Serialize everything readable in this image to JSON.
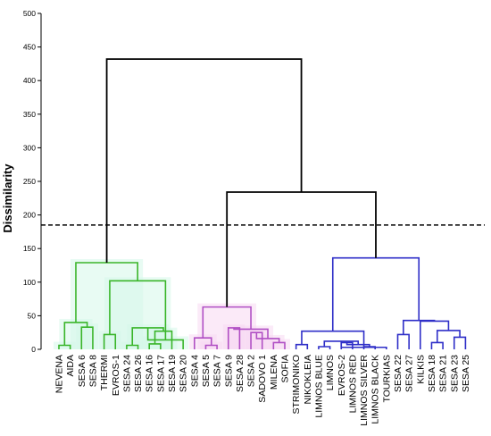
{
  "chart_data": {
    "type": "dendrogram",
    "ylabel": "Dissimilarity",
    "ylim": [
      0,
      500
    ],
    "yticks": [
      0,
      50,
      100,
      150,
      200,
      250,
      300,
      350,
      400,
      450,
      500
    ],
    "cut_line": 185,
    "leaves": [
      "NEVENA",
      "AIDA",
      "SESA 6",
      "SESA 8",
      "THERMI",
      "EVROS-1",
      "SESA 24",
      "SESA 26",
      "SESA 16",
      "SESA 17",
      "SESA 19",
      "SESA 20",
      "SESA 4",
      "SESA 5",
      "SESA 7",
      "SESA 9",
      "SESA 28",
      "SESA 2",
      "SADOVO 1",
      "MILENA",
      "SOFIA",
      "STRIMONIKO",
      "NIKOKLEIA",
      "LIMNOS BLUE",
      "LIMNOS",
      "EVROS-2",
      "LIMNOS RED",
      "LIMNOS SILVER",
      "LIMNOS BLACK",
      "TOURKIAS",
      "SESA 22",
      "SESA 27",
      "KILKIS",
      "SESA 18",
      "SESA 21",
      "SESA 23",
      "SESA 25"
    ],
    "clusters": [
      {
        "color": "#3ab52a",
        "shade": "#d6f7ea",
        "leaves": [
          0,
          11
        ]
      },
      {
        "color": "#b04fc4",
        "shade": "#f7d9f3",
        "leaves": [
          12,
          20
        ]
      },
      {
        "color": "#2f2fc8",
        "shade": "",
        "leaves": [
          21,
          36
        ]
      }
    ],
    "merges": [
      {
        "a": 0,
        "b": 1,
        "h": 6,
        "c": 0
      },
      {
        "a": 2,
        "b": 3,
        "h": 33,
        "c": 0
      },
      {
        "a": "m0",
        "b": "m1",
        "h": 40,
        "c": 0
      },
      {
        "a": 4,
        "b": 5,
        "h": 22,
        "c": 0
      },
      {
        "a": 6,
        "b": 7,
        "h": 6,
        "c": 0
      },
      {
        "a": 8,
        "b": 9,
        "h": 8,
        "c": 0
      },
      {
        "a": "m5",
        "b": 10,
        "h": 27,
        "c": 0
      },
      {
        "a": "m4",
        "b": "m6",
        "h": 32,
        "c": 0
      },
      {
        "a": "m7",
        "b": 11,
        "h": 14,
        "c": 0
      },
      {
        "a": "m3",
        "b": "m8",
        "h": 102,
        "c": 0
      },
      {
        "a": "m2",
        "b": "m9",
        "h": 129,
        "c": 0
      },
      {
        "a": 13,
        "b": 14,
        "h": 6,
        "c": 1
      },
      {
        "a": 12,
        "b": "m11",
        "h": 17,
        "c": 1
      },
      {
        "a": 15,
        "b": 16,
        "h": 32,
        "c": 1
      },
      {
        "a": 17,
        "b": 18,
        "h": 25,
        "c": 1
      },
      {
        "a": 19,
        "b": 20,
        "h": 10,
        "c": 1
      },
      {
        "a": "m14",
        "b": "m15",
        "h": 16,
        "c": 1
      },
      {
        "a": "m13",
        "b": "m16",
        "h": 30,
        "c": 1
      },
      {
        "a": "m12",
        "b": "m17",
        "h": 63,
        "c": 1
      },
      {
        "a": 21,
        "b": 22,
        "h": 7,
        "c": 2
      },
      {
        "a": 23,
        "b": 24,
        "h": 4,
        "c": 2
      },
      {
        "a": 25,
        "b": 26,
        "h": 10,
        "c": 2
      },
      {
        "a": 27,
        "b": 28,
        "h": 4,
        "c": 2
      },
      {
        "a": "m21",
        "b": "m22",
        "h": 7,
        "c": 2
      },
      {
        "a": "m20",
        "b": "m23",
        "h": 12,
        "c": 2
      },
      {
        "a": "m24",
        "b": 29,
        "h": 3,
        "c": 2
      },
      {
        "a": "m19",
        "b": "m25",
        "h": 27,
        "c": 2
      },
      {
        "a": 30,
        "b": 31,
        "h": 22,
        "c": 2
      },
      {
        "a": 33,
        "b": 34,
        "h": 10,
        "c": 2
      },
      {
        "a": 35,
        "b": 36,
        "h": 18,
        "c": 2
      },
      {
        "a": "m28",
        "b": "m29",
        "h": 28,
        "c": 2
      },
      {
        "a": 32,
        "b": "m30",
        "h": 42,
        "c": 2
      },
      {
        "a": "m27",
        "b": "m31",
        "h": 43,
        "c": 2
      },
      {
        "a": "m26",
        "b": "m32",
        "h": 136,
        "c": 2
      },
      {
        "a": "m18",
        "b": "m33",
        "h": 234,
        "c": 3
      },
      {
        "a": "m10",
        "b": "m34",
        "h": 432,
        "c": 3
      }
    ],
    "root_color": "#000000",
    "axis_color": "#000000",
    "grid": false
  }
}
